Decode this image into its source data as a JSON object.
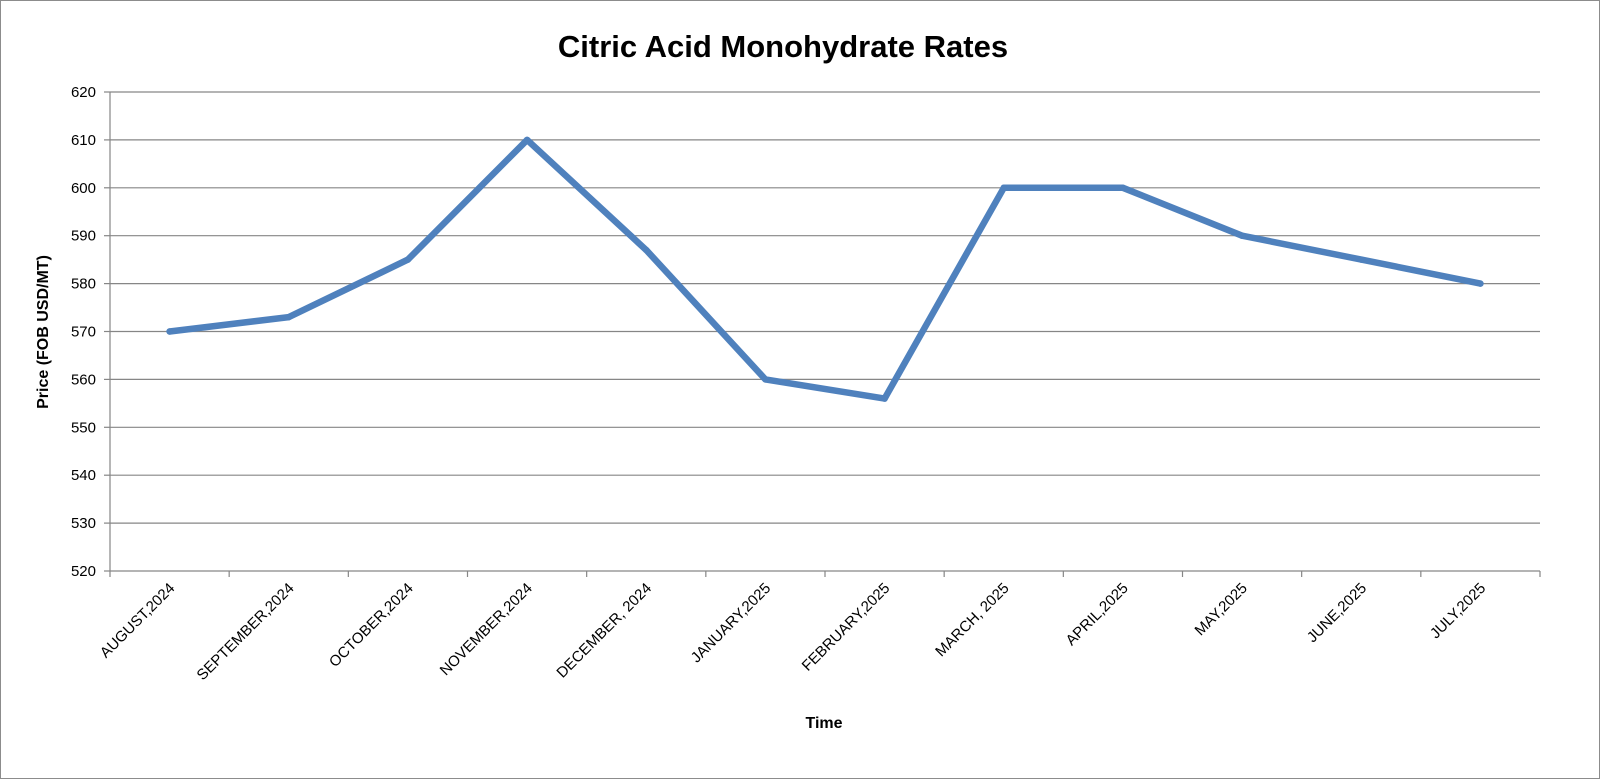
{
  "chart_data": {
    "type": "line",
    "title": "Citric Acid Monohydrate Rates",
    "xlabel": "Time",
    "ylabel": "Price (FOB USD/MT)",
    "ylim": [
      520,
      620
    ],
    "ytick_step": 10,
    "categories": [
      "AUGUST,2024",
      "SEPTEMBER,2024",
      "OCTOBER,2024",
      "NOVEMBER,2024",
      "DECEMBER, 2024",
      "JANUARY,2025",
      "FEBRUARY,2025",
      "MARCH, 2025",
      "APRIL,2025",
      "MAY,2025",
      "JUNE,2025",
      "JULY,2025"
    ],
    "series": [
      {
        "values": [
          570,
          573,
          585,
          610,
          587,
          560,
          556,
          600,
          600,
          590,
          585,
          580
        ],
        "color": "#4f81bd"
      }
    ],
    "grid": true,
    "gridline_color": "#868686",
    "legend": "none"
  }
}
